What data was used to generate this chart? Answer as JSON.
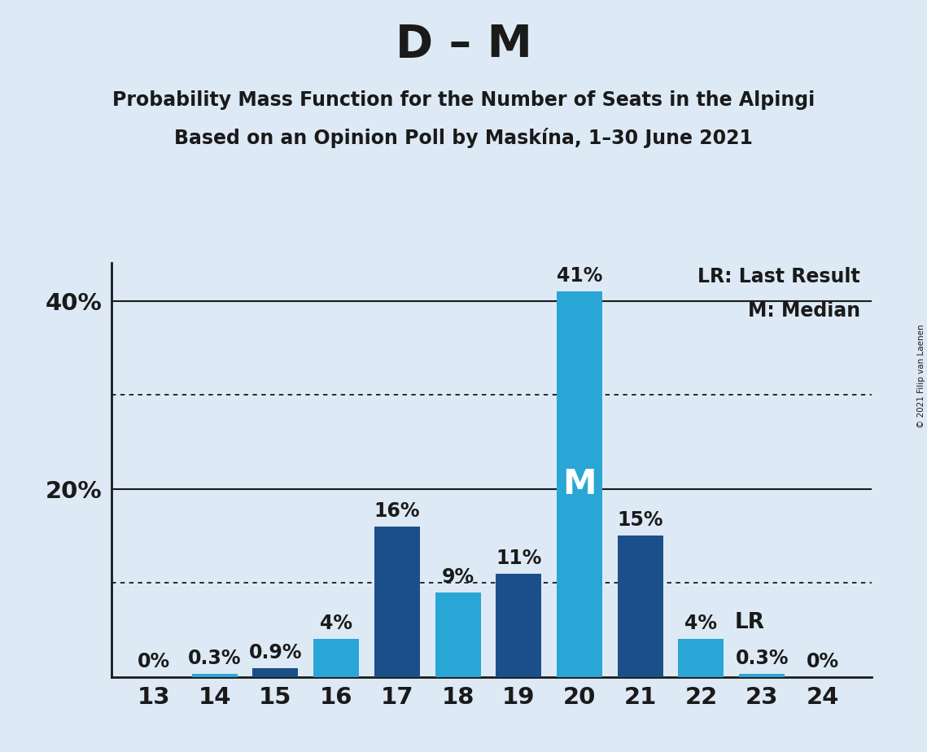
{
  "title": "D – M",
  "subtitle1": "Probability Mass Function for the Number of Seats in the Alpingi",
  "subtitle2": "Based on an Opinion Poll by Maskína, 1–30 June 2021",
  "copyright": "© 2021 Filip van Laenen",
  "background_color": "#ddeaf5",
  "seats": [
    13,
    14,
    15,
    16,
    17,
    18,
    19,
    20,
    21,
    22,
    23,
    24
  ],
  "values": [
    0.0,
    0.3,
    0.9,
    4.0,
    16.0,
    9.0,
    11.0,
    41.0,
    15.0,
    4.0,
    0.3,
    0.0
  ],
  "bar_labels": [
    "0%",
    "0.3%",
    "0.9%",
    "4%",
    "16%",
    "9%",
    "11%",
    "41%",
    "15%",
    "4%",
    "0.3%",
    "0%"
  ],
  "bar_colors": [
    "#29a6d6",
    "#29a6d6",
    "#1a4f8a",
    "#29a6d6",
    "#1a4f8a",
    "#29a6d6",
    "#1a4f8a",
    "#29a6d6",
    "#1a4f8a",
    "#29a6d6",
    "#29a6d6",
    "#29a6d6"
  ],
  "dark_blue": "#1a4f8a",
  "light_blue": "#29a6d6",
  "text_color": "#1a1a1a",
  "ylim_max": 44,
  "dotted_lines": [
    10,
    30
  ],
  "solid_lines": [
    20,
    40
  ],
  "median_seat": 20,
  "lr_seat": 22,
  "legend_lr": "LR: Last Result",
  "legend_m": "M: Median",
  "title_fontsize": 40,
  "subtitle_fontsize": 17,
  "bar_label_fontsize": 17,
  "axis_tick_fontsize": 21,
  "ytick_fontsize": 21,
  "legend_fontsize": 17,
  "median_fontsize": 30,
  "lr_label_fontsize": 19
}
